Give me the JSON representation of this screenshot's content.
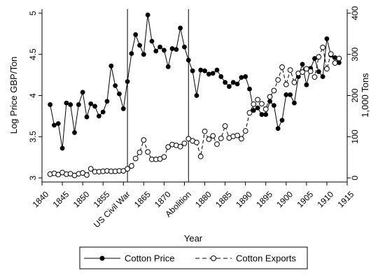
{
  "chart_data": {
    "type": "line",
    "xlabel": "Year",
    "ylabel_left": "Log Price GBP/Ton",
    "ylabel_right": "1,000 Tons",
    "xlim": [
      1840,
      1915
    ],
    "ylim_left": [
      2.95,
      5.05
    ],
    "ylim_right": [
      -10,
      410
    ],
    "x_ticks": [
      "1840",
      "1845",
      "1850",
      "1855",
      "US Civil War",
      "1865",
      "1870",
      "Abolition",
      "1880",
      "1885",
      "1890",
      "1895",
      "1900",
      "1905",
      "1910",
      "1915"
    ],
    "x_tick_values": [
      1840,
      1845,
      1850,
      1855,
      1860,
      1865,
      1870,
      1875,
      1880,
      1885,
      1890,
      1895,
      1900,
      1905,
      1910,
      1915
    ],
    "y_left_ticks": [
      3,
      3.5,
      4,
      4.5,
      5
    ],
    "y_left_tick_labels": [
      "3",
      "3.5",
      "4",
      "4.5",
      "5"
    ],
    "y_right_ticks": [
      0,
      100,
      200,
      300,
      400
    ],
    "y_right_tick_labels": [
      "0",
      "100",
      "200",
      "300",
      "400"
    ],
    "vertical_lines": [
      {
        "x": 1861,
        "label": "US Civil War"
      },
      {
        "x": 1876,
        "label": "Abolition"
      }
    ],
    "grid": false,
    "legend_position": "bottom",
    "series": [
      {
        "name": "Cotton Price",
        "axis": "left",
        "marker": "filled-circle",
        "color": "#000000",
        "x": [
          1842,
          1843,
          1844,
          1845,
          1846,
          1847,
          1848,
          1849,
          1850,
          1851,
          1852,
          1853,
          1854,
          1855,
          1856,
          1857,
          1858,
          1859,
          1860,
          1861,
          1862,
          1863,
          1864,
          1865,
          1866,
          1867,
          1868,
          1869,
          1870,
          1871,
          1872,
          1873,
          1874,
          1875,
          1876,
          1877,
          1878,
          1879,
          1880,
          1881,
          1882,
          1883,
          1884,
          1885,
          1886,
          1887,
          1888,
          1889,
          1890,
          1891,
          1892,
          1893,
          1894,
          1895,
          1896,
          1897,
          1898,
          1899,
          1900,
          1901,
          1902,
          1903,
          1904,
          1905,
          1906,
          1907,
          1908,
          1909,
          1910,
          1911,
          1912,
          1913
        ],
        "values": [
          3.89,
          3.64,
          3.66,
          3.36,
          3.91,
          3.89,
          3.55,
          3.89,
          4.04,
          3.74,
          3.9,
          3.87,
          3.75,
          3.8,
          3.93,
          4.36,
          4.12,
          4.02,
          3.84,
          4.17,
          4.51,
          4.74,
          4.61,
          4.5,
          4.98,
          4.66,
          4.54,
          4.59,
          4.55,
          4.35,
          4.57,
          4.56,
          4.82,
          4.59,
          4.43,
          4.3,
          4.0,
          4.31,
          4.3,
          4.26,
          4.27,
          4.31,
          4.23,
          4.16,
          4.11,
          4.16,
          4.14,
          4.22,
          4.23,
          4.08,
          3.82,
          3.85,
          3.77,
          3.77,
          3.93,
          3.88,
          3.6,
          3.7,
          4.01,
          4.01,
          3.91,
          4.23,
          4.38,
          4.13,
          4.33,
          4.45,
          4.29,
          4.23,
          4.69,
          4.49,
          4.46,
          4.4
        ]
      },
      {
        "name": "Cotton Exports",
        "axis": "right",
        "marker": "hollow-circle",
        "line_style": "dashed",
        "color": "#000000",
        "x": [
          1842,
          1843,
          1844,
          1845,
          1846,
          1847,
          1848,
          1849,
          1850,
          1851,
          1852,
          1853,
          1854,
          1855,
          1856,
          1857,
          1858,
          1859,
          1860,
          1861,
          1862,
          1863,
          1864,
          1865,
          1866,
          1867,
          1868,
          1869,
          1870,
          1871,
          1872,
          1873,
          1874,
          1875,
          1876,
          1877,
          1878,
          1879,
          1880,
          1881,
          1882,
          1883,
          1884,
          1885,
          1886,
          1887,
          1888,
          1889,
          1890,
          1891,
          1892,
          1893,
          1894,
          1895,
          1896,
          1897,
          1898,
          1899,
          1900,
          1901,
          1902,
          1903,
          1904,
          1905,
          1906,
          1907,
          1908,
          1909,
          1910,
          1911,
          1912,
          1913
        ],
        "values": [
          9,
          11,
          8,
          13,
          9,
          10,
          6,
          10,
          12,
          7,
          22,
          15,
          15,
          16,
          17,
          16,
          16,
          17,
          17,
          22,
          29,
          47,
          62,
          92,
          63,
          45,
          45,
          46,
          51,
          75,
          81,
          79,
          76,
          84,
          95,
          90,
          86,
          52,
          113,
          94,
          102,
          82,
          96,
          126,
          97,
          101,
          103,
          95,
          114,
          158,
          179,
          190,
          180,
          167,
          197,
          212,
          238,
          269,
          227,
          262,
          232,
          254,
          257,
          265,
          259,
          245,
          294,
          317,
          265,
          301,
          279,
          290
        ]
      }
    ]
  }
}
